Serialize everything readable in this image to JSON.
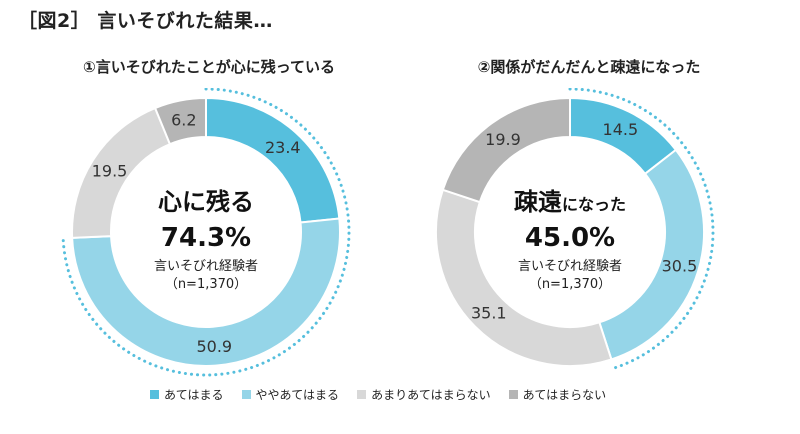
{
  "figure_title": "［図2］ 言いそびれた結果…",
  "colors": {
    "あてはまる": "#56BFDD",
    "ややあてはまる": "#95D5E8",
    "あまりあてはまらない": "#D8D8D8",
    "あてはまらない": "#B5B5B5",
    "dotted_accent": "#56BFDD"
  },
  "chart_data": [
    {
      "type": "pie",
      "title": "①言いそびれたことが心に残っている",
      "categories": [
        "あてはまる",
        "ややあてはまる",
        "あまりあてはまらない",
        "あてはまらない"
      ],
      "values": [
        23.4,
        50.9,
        19.5,
        6.2
      ],
      "value_labels": [
        "23.4",
        "50.9",
        "19.5",
        "6.2"
      ],
      "center": {
        "headline": "心に残る",
        "headline_suffix": "",
        "percent": "74.3%",
        "sub": "言いそびれ経験者",
        "n": "（n=1,370）"
      },
      "highlight_share": 74.3
    },
    {
      "type": "pie",
      "title": "②関係がだんだんと疎遠になった",
      "categories": [
        "あてはまる",
        "ややあてはまる",
        "あまりあてはまらない",
        "あてはまらない"
      ],
      "values": [
        14.5,
        30.5,
        35.1,
        19.9
      ],
      "value_labels": [
        "14.5",
        "30.5",
        "35.1",
        "19.9"
      ],
      "center": {
        "headline": "疎遠",
        "headline_suffix": "になった",
        "percent": "45.0%",
        "sub": "言いそびれ経験者",
        "n": "（n=1,370）"
      },
      "highlight_share": 45.0
    }
  ],
  "legend": [
    "あてはまる",
    "ややあてはまる",
    "あまりあてはまらない",
    "あてはまらない"
  ]
}
